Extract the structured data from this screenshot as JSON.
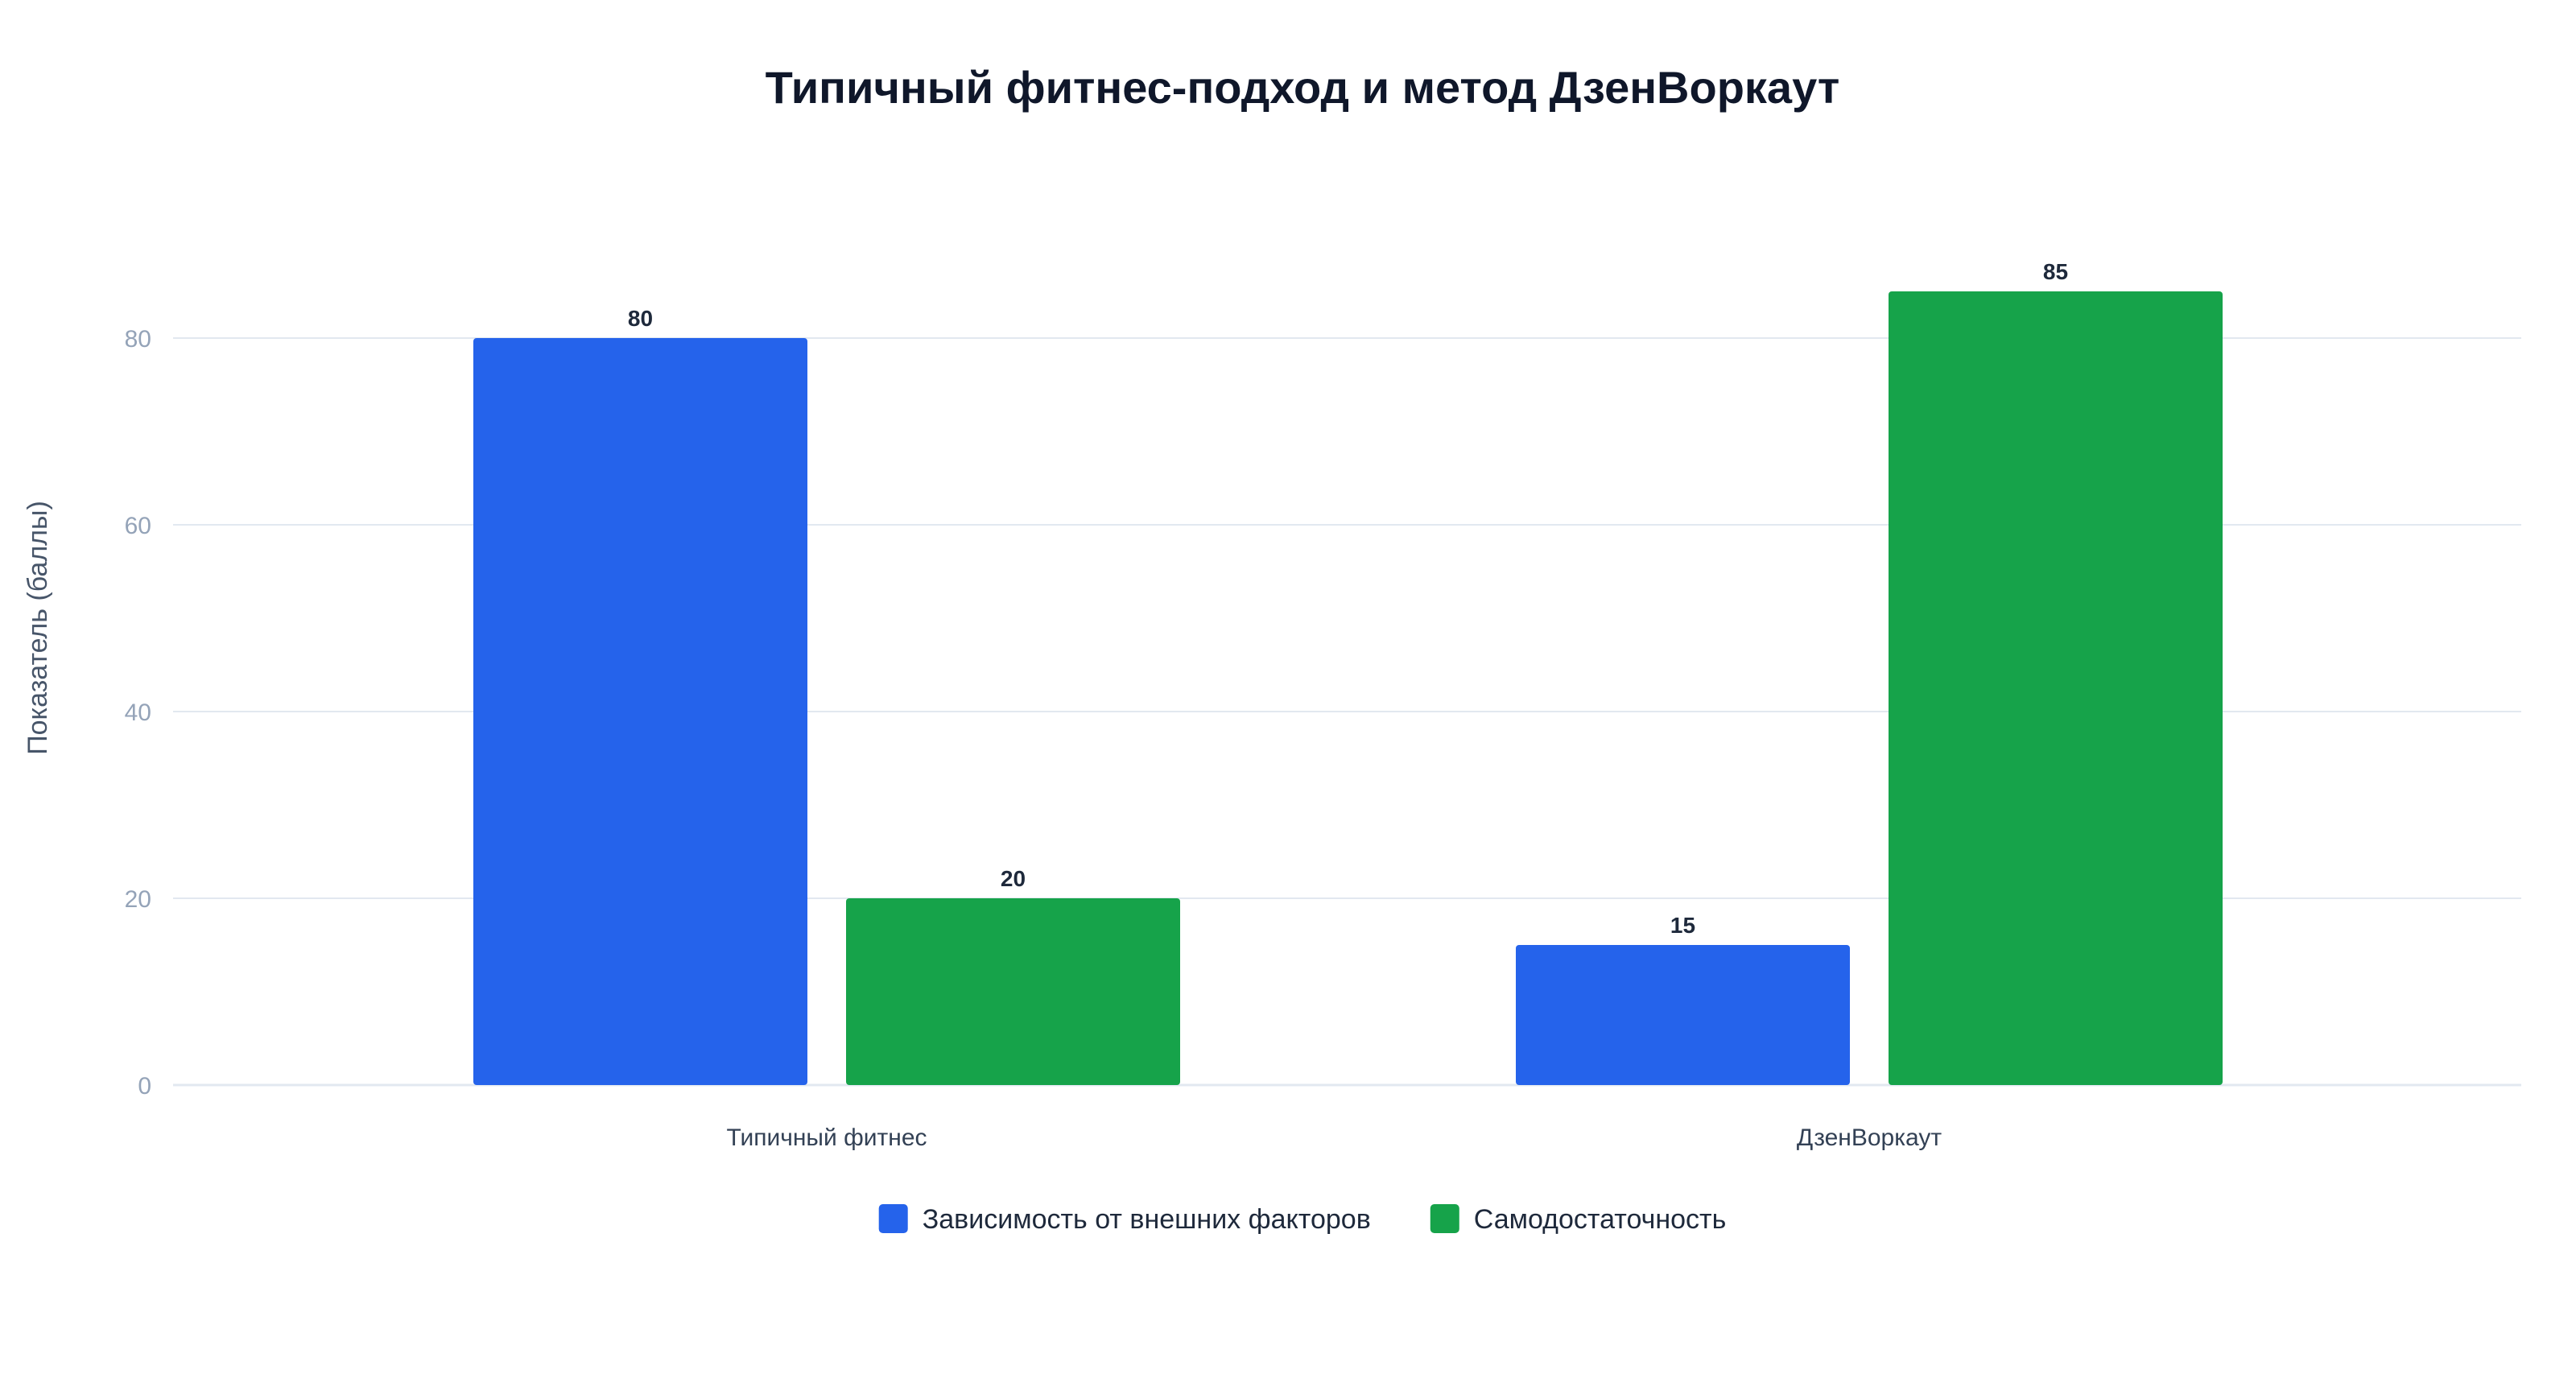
{
  "chart_data": {
    "type": "bar",
    "title": "Типичный фитнес-подход и метод ДзенВоркаут",
    "xlabel": "",
    "ylabel": "Показатель (баллы)",
    "categories": [
      "Типичный фитнес",
      "ДзенВоркаут"
    ],
    "series": [
      {
        "name": "Зависимость от внешних факторов",
        "values": [
          80,
          15
        ],
        "color": "#2563eb"
      },
      {
        "name": "Самодостаточность",
        "values": [
          20,
          85
        ],
        "color": "#16a34a"
      }
    ],
    "ylim": [
      0,
      100
    ],
    "yticks": [
      0,
      20,
      40,
      60,
      80
    ],
    "grid": true,
    "legend_position": "bottom-center",
    "data_labels": true
  }
}
